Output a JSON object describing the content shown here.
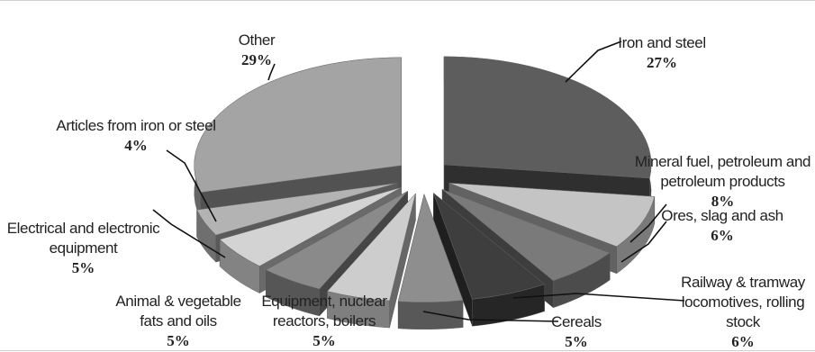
{
  "chart_data": {
    "type": "pie",
    "style": "3d-exploded",
    "legend": "none",
    "slices": [
      {
        "label": "Iron and steel",
        "value": 27,
        "value_label": "27%",
        "color": "#5d5d5d"
      },
      {
        "label": "Mineral fuel, petroleum and petroleum products",
        "value": 8,
        "value_label": "8%",
        "color": "#c4c4c4"
      },
      {
        "label": "Ores, slag and ash",
        "value": 6,
        "value_label": "6%",
        "color": "#7a7a7a"
      },
      {
        "label": "Railway & tramway locomotives, rolling stock",
        "value": 6,
        "value_label": "6%",
        "color": "#3e3e3e"
      },
      {
        "label": "Cereals",
        "value": 5,
        "value_label": "5%",
        "color": "#8e8e8e"
      },
      {
        "label": "Equipment, nuclear reactors, boilers",
        "value": 5,
        "value_label": "5%",
        "color": "#cdcdcd"
      },
      {
        "label": "Animal & vegetable fats and oils",
        "value": 5,
        "value_label": "5%",
        "color": "#8a8a8a"
      },
      {
        "label": "Electrical and electronic equipment",
        "value": 5,
        "value_label": "5%",
        "color": "#d3d3d3"
      },
      {
        "label": "Articles from iron or steel",
        "value": 4,
        "value_label": "4%",
        "color": "#b3b3b3"
      },
      {
        "label": "Other",
        "value": 29,
        "value_label": "29%",
        "color": "#a4a4a4"
      }
    ]
  }
}
